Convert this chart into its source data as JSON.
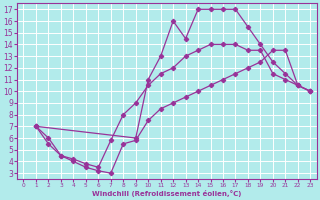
{
  "xlabel": "Windchill (Refroidissement éolien,°C)",
  "bg_color": "#b2ebeb",
  "grid_color": "#ffffff",
  "line_color": "#993399",
  "xlim": [
    -0.5,
    23.5
  ],
  "ylim": [
    2.5,
    17.5
  ],
  "xticks": [
    0,
    1,
    2,
    3,
    4,
    5,
    6,
    7,
    8,
    9,
    10,
    11,
    12,
    13,
    14,
    15,
    16,
    17,
    18,
    19,
    20,
    21,
    22,
    23
  ],
  "yticks": [
    3,
    4,
    5,
    6,
    7,
    8,
    9,
    10,
    11,
    12,
    13,
    14,
    15,
    16,
    17
  ],
  "curve_upper_x": [
    1,
    9,
    10,
    11,
    12,
    13,
    14,
    15,
    16,
    17,
    18,
    19,
    20,
    21,
    22,
    23
  ],
  "curve_upper_y": [
    7.0,
    6.0,
    11.0,
    13.0,
    16.0,
    14.5,
    17.0,
    17.0,
    17.0,
    17.0,
    15.5,
    14.0,
    12.5,
    11.5,
    10.5,
    10.0
  ],
  "curve_lower_x": [
    1,
    2,
    3,
    4,
    5,
    6,
    7,
    8,
    9,
    10,
    11,
    12,
    13,
    14,
    15,
    16,
    17,
    18,
    19,
    20,
    21,
    22,
    23
  ],
  "curve_lower_y": [
    7.0,
    5.5,
    4.5,
    4.0,
    3.5,
    3.2,
    3.0,
    5.5,
    5.8,
    7.5,
    8.5,
    9.0,
    9.5,
    10.0,
    10.5,
    11.0,
    11.5,
    12.0,
    12.5,
    13.5,
    13.5,
    10.5,
    10.0
  ],
  "curve_mid_x": [
    1,
    2,
    3,
    4,
    5,
    6,
    7,
    8,
    9,
    10,
    11,
    12,
    13,
    14,
    15,
    16,
    17,
    18,
    19,
    20,
    21,
    22,
    23
  ],
  "curve_mid_y": [
    7.0,
    6.0,
    4.5,
    4.2,
    3.8,
    3.5,
    5.8,
    8.0,
    9.0,
    10.5,
    11.5,
    12.0,
    13.0,
    13.5,
    14.0,
    14.0,
    14.0,
    13.5,
    13.5,
    11.5,
    11.0,
    10.5,
    10.0
  ]
}
